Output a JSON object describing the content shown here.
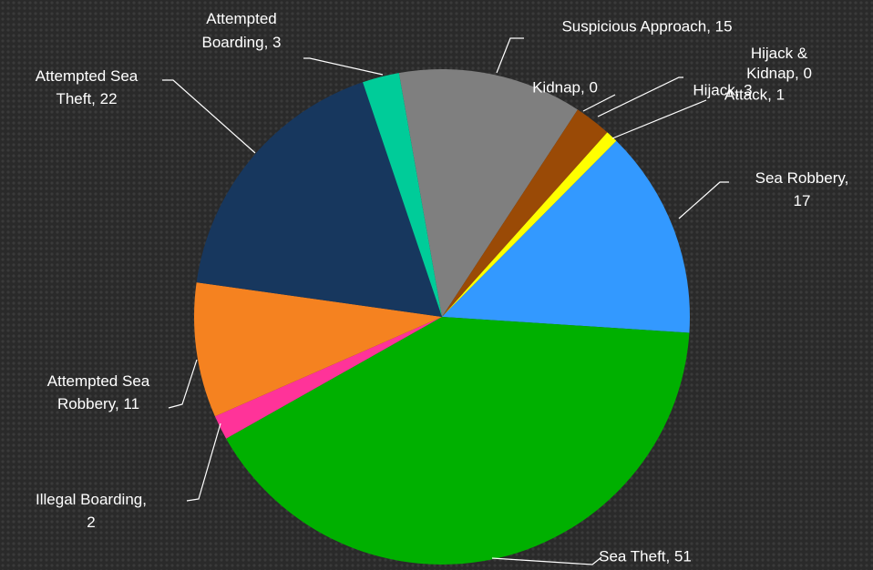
{
  "chart_data": {
    "type": "pie",
    "categories": [
      "Suspicious Approach",
      "Kidnap",
      "Hijack",
      "Hijack & Kidnap",
      "Attack",
      "Sea Robbery",
      "Sea Theft",
      "Illegal Boarding",
      "Attempted Sea Robbery",
      "Attempted Sea Theft",
      "Attempted Boarding"
    ],
    "values": [
      15,
      0,
      3,
      0,
      1,
      17,
      51,
      2,
      11,
      22,
      3
    ],
    "value_labels": [
      "Suspicious Approach, 15",
      "Kidnap, 0",
      "Hijack, 3",
      "Hijack & Kidnap, 0",
      "Attack, 1",
      "Sea Robbery, 17",
      "Sea Theft, 51",
      "Illegal Boarding, 2",
      "Attempted Sea Robbery, 11",
      "Attempted Sea Theft, 22",
      "Attempted Boarding, 3"
    ],
    "colors": [
      "#7f7f7f",
      "#c0504d",
      "#9a4a06",
      "#8064a2",
      "#ffff00",
      "#3399ff",
      "#00b000",
      "#ff3399",
      "#f58220",
      "#17375e",
      "#00cc99"
    ]
  }
}
